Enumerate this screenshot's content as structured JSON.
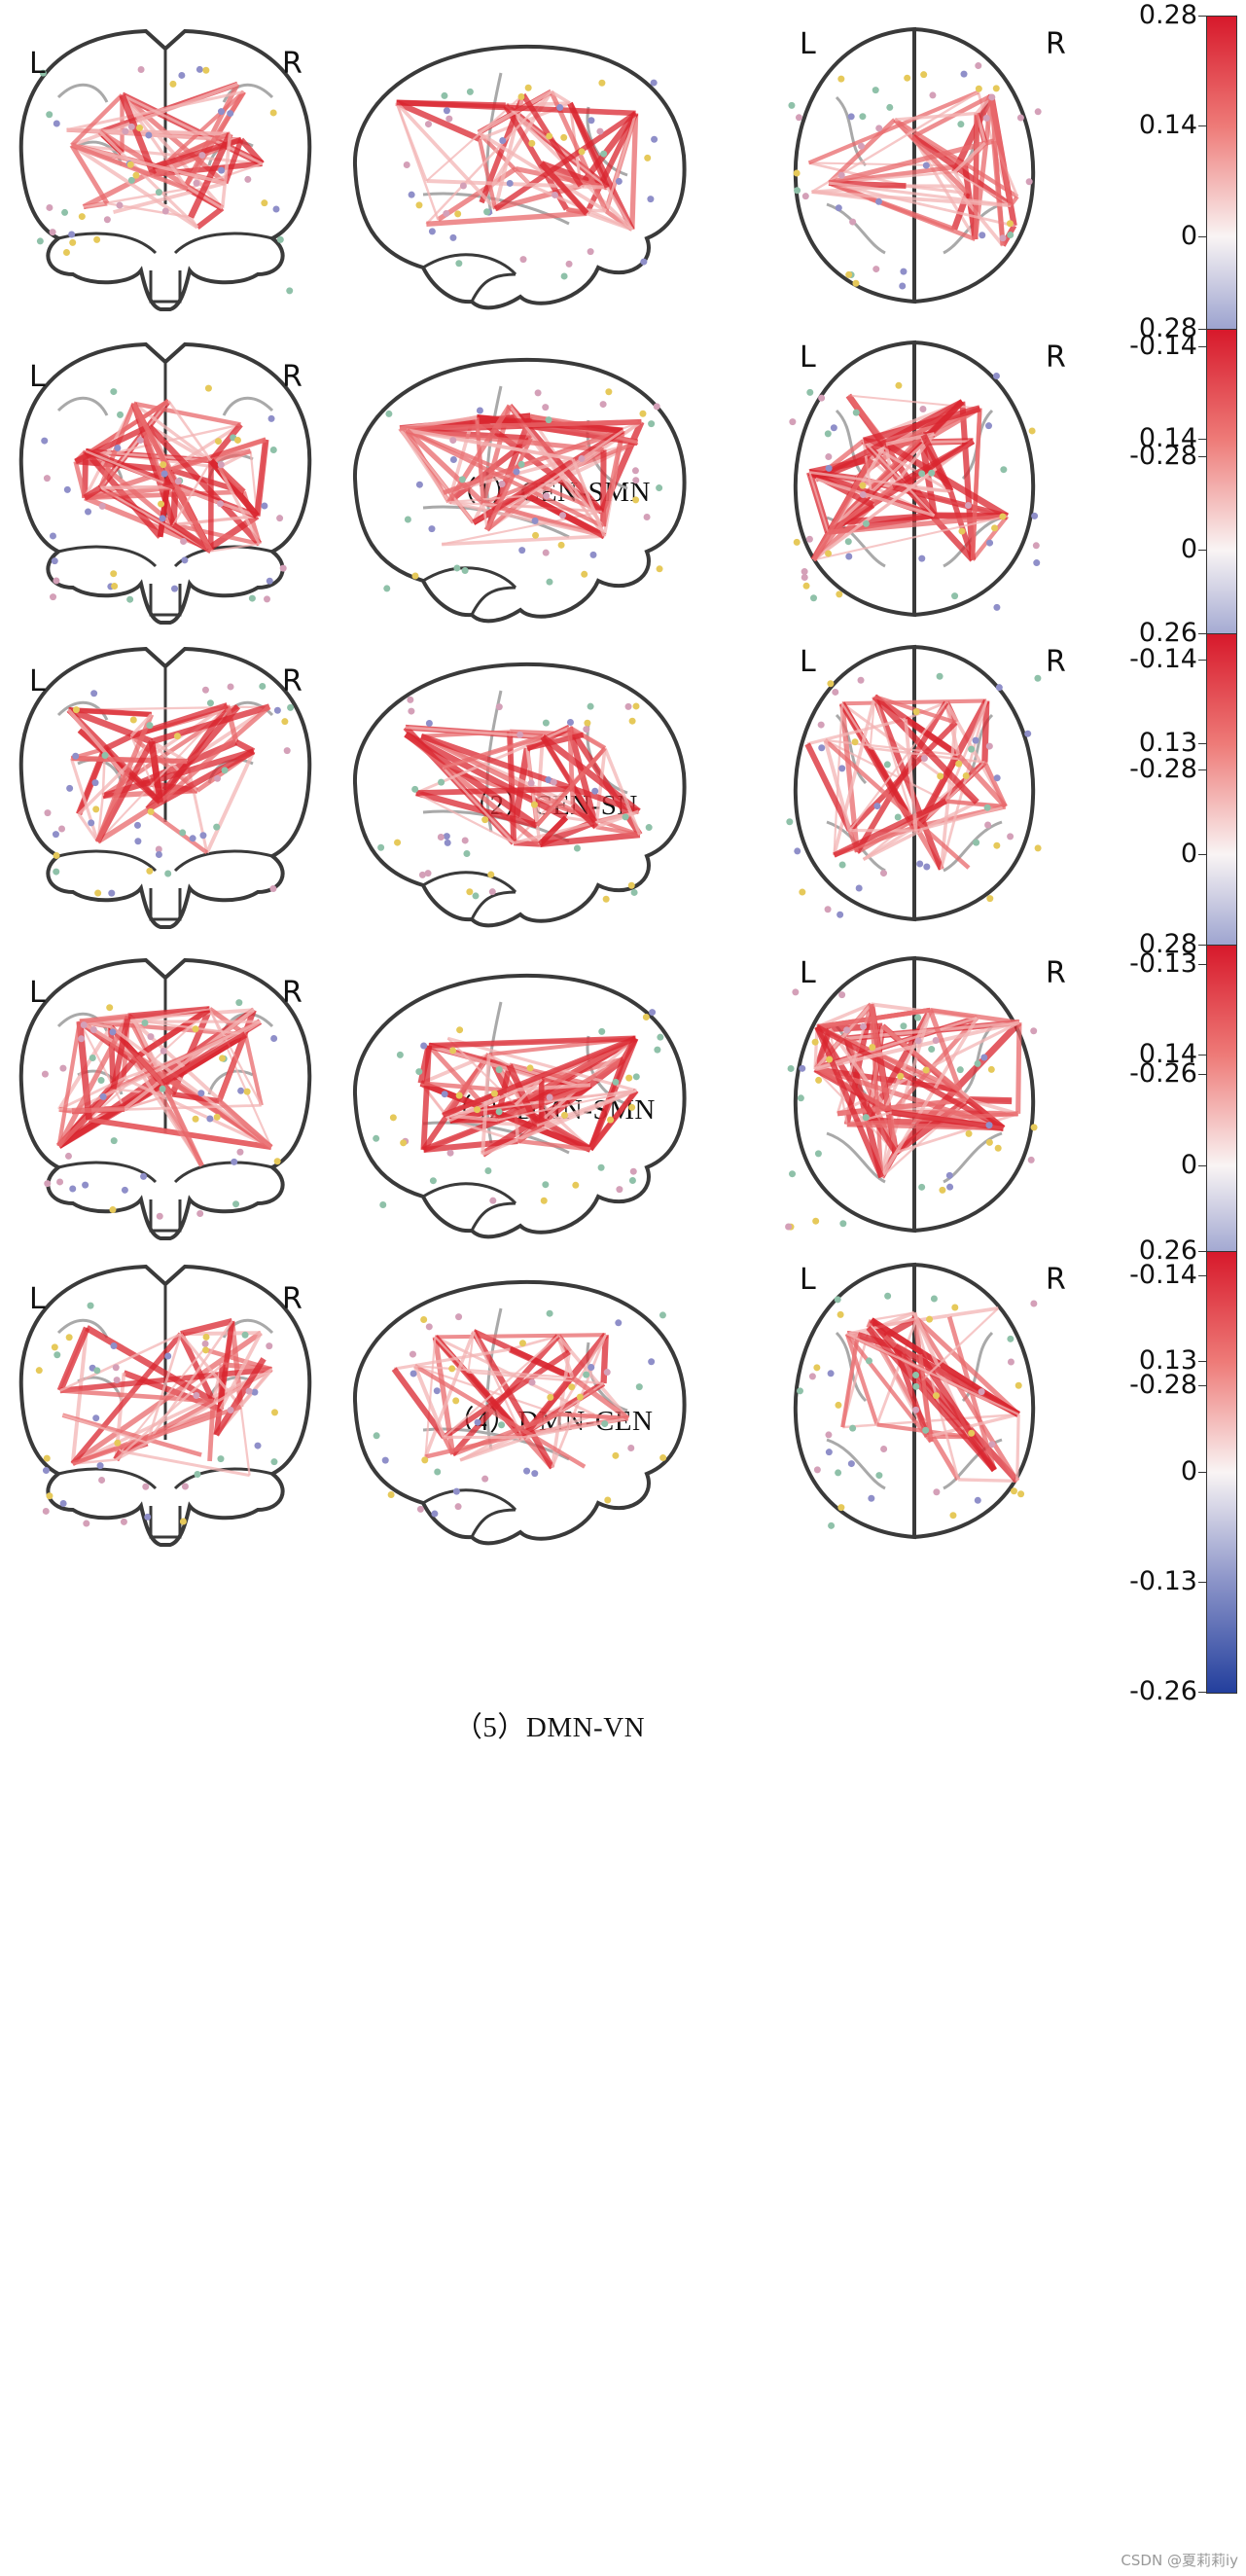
{
  "orientation_labels": {
    "left": "L",
    "right": "R"
  },
  "panels": [
    {
      "caption": "（1）CEN-SMN",
      "ticks": [
        "0.28",
        "0.14",
        "0",
        "-0.14",
        "-0.28"
      ],
      "vmax": 0.28,
      "density": 1.0
    },
    {
      "caption": "（2）CEN-SN",
      "ticks": [
        "0.28",
        "0.14",
        "0",
        "-0.14",
        "-0.28"
      ],
      "vmax": 0.28,
      "density": 1.5
    },
    {
      "caption": "（3）DMN-SMN",
      "ticks": [
        "0.26",
        "0.13",
        "0",
        "-0.13",
        "-0.26"
      ],
      "vmax": 0.26,
      "density": 1.0
    },
    {
      "caption": "（4）DMN-CEN",
      "ticks": [
        "0.28",
        "0.14",
        "0",
        "-0.14",
        "-0.28"
      ],
      "vmax": 0.28,
      "density": 1.6
    },
    {
      "caption": "（5）DMN-VN",
      "ticks": [
        "0.26",
        "0.13",
        "0",
        "-0.13",
        "-0.26"
      ],
      "vmax": 0.26,
      "density": 0.9
    }
  ],
  "colors": {
    "positive": "#d7192b",
    "mid": "#f9f4f4",
    "negative": "#233f9d",
    "outline": "#3a3a3a",
    "sulci": "#a9a9a9"
  },
  "watermark": "CSDN @夏莉莉iy"
}
